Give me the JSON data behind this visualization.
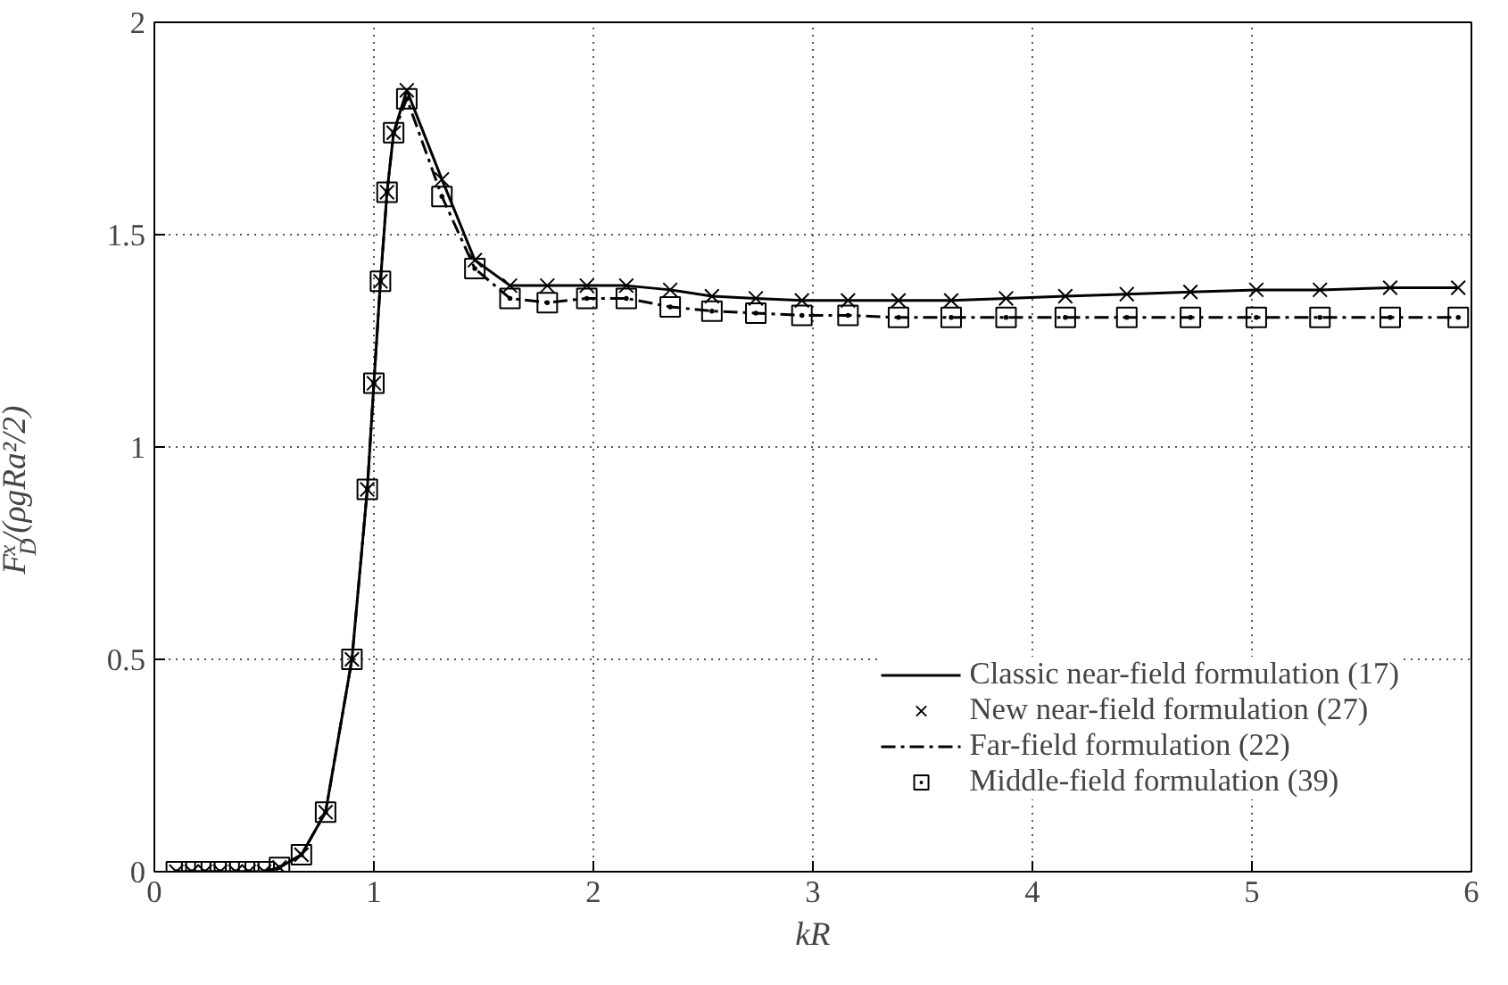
{
  "chart_data": {
    "type": "line",
    "xlabel": "kR",
    "ylabel": "F$_{D}$$^{x}$/(ρgRa²/2)",
    "xlim": [
      0,
      6
    ],
    "ylim": [
      0,
      2
    ],
    "xticks": [
      0,
      1,
      2,
      3,
      4,
      5,
      6
    ],
    "yticks": [
      0,
      0.5,
      1,
      1.5,
      2
    ],
    "grid": true,
    "legend": "bottom right",
    "x": [
      0.1,
      0.17,
      0.23,
      0.3,
      0.37,
      0.43,
      0.5,
      0.57,
      0.67,
      0.78,
      0.9,
      0.97,
      1.0,
      1.03,
      1.06,
      1.09,
      1.15,
      1.31,
      1.46,
      1.62,
      1.79,
      1.97,
      2.15,
      2.35,
      2.54,
      2.74,
      2.95,
      3.16,
      3.39,
      3.63,
      3.88,
      4.15,
      4.43,
      4.72,
      5.02,
      5.31,
      5.63,
      5.94
    ],
    "series": [
      {
        "name": "Classic near-field formulation (17)",
        "type": "line",
        "line_style": "solid",
        "marker": "none",
        "color": "#000000",
        "values": [
          0,
          0,
          0,
          0,
          0,
          0,
          0,
          0.01,
          0.04,
          0.14,
          0.5,
          0.9,
          1.15,
          1.39,
          1.6,
          1.74,
          1.84,
          1.63,
          1.44,
          1.38,
          1.38,
          1.38,
          1.38,
          1.37,
          1.355,
          1.35,
          1.345,
          1.345,
          1.345,
          1.345,
          1.35,
          1.355,
          1.36,
          1.365,
          1.37,
          1.37,
          1.375,
          1.375
        ]
      },
      {
        "name": "New near-field formulation (27)",
        "type": "scatter",
        "marker": "cross",
        "color": "#000000",
        "values": [
          0,
          0,
          0,
          0,
          0,
          0,
          0,
          0.01,
          0.04,
          0.14,
          0.5,
          0.9,
          1.15,
          1.39,
          1.6,
          1.74,
          1.84,
          1.63,
          1.44,
          1.38,
          1.38,
          1.38,
          1.38,
          1.37,
          1.355,
          1.35,
          1.345,
          1.345,
          1.345,
          1.345,
          1.35,
          1.355,
          1.36,
          1.365,
          1.37,
          1.37,
          1.375,
          1.375
        ]
      },
      {
        "name": "Far-field formulation (22)",
        "type": "line",
        "line_style": "dashdot",
        "marker": "none",
        "color": "#000000",
        "values": [
          0,
          0,
          0,
          0,
          0,
          0,
          0,
          0.01,
          0.04,
          0.14,
          0.5,
          0.9,
          1.15,
          1.39,
          1.6,
          1.74,
          1.82,
          1.59,
          1.42,
          1.35,
          1.34,
          1.35,
          1.35,
          1.33,
          1.32,
          1.315,
          1.31,
          1.31,
          1.305,
          1.305,
          1.305,
          1.305,
          1.305,
          1.305,
          1.305,
          1.305,
          1.305,
          1.305
        ]
      },
      {
        "name": "Middle-field formulation (39)",
        "type": "scatter",
        "marker": "square",
        "color": "#000000",
        "values": [
          0,
          0,
          0,
          0,
          0,
          0,
          0,
          0.01,
          0.04,
          0.14,
          0.5,
          0.9,
          1.15,
          1.39,
          1.6,
          1.74,
          1.82,
          1.59,
          1.42,
          1.35,
          1.34,
          1.35,
          1.35,
          1.33,
          1.32,
          1.315,
          1.31,
          1.31,
          1.305,
          1.305,
          1.305,
          1.305,
          1.305,
          1.305,
          1.305,
          1.305,
          1.305,
          1.305
        ]
      }
    ]
  }
}
